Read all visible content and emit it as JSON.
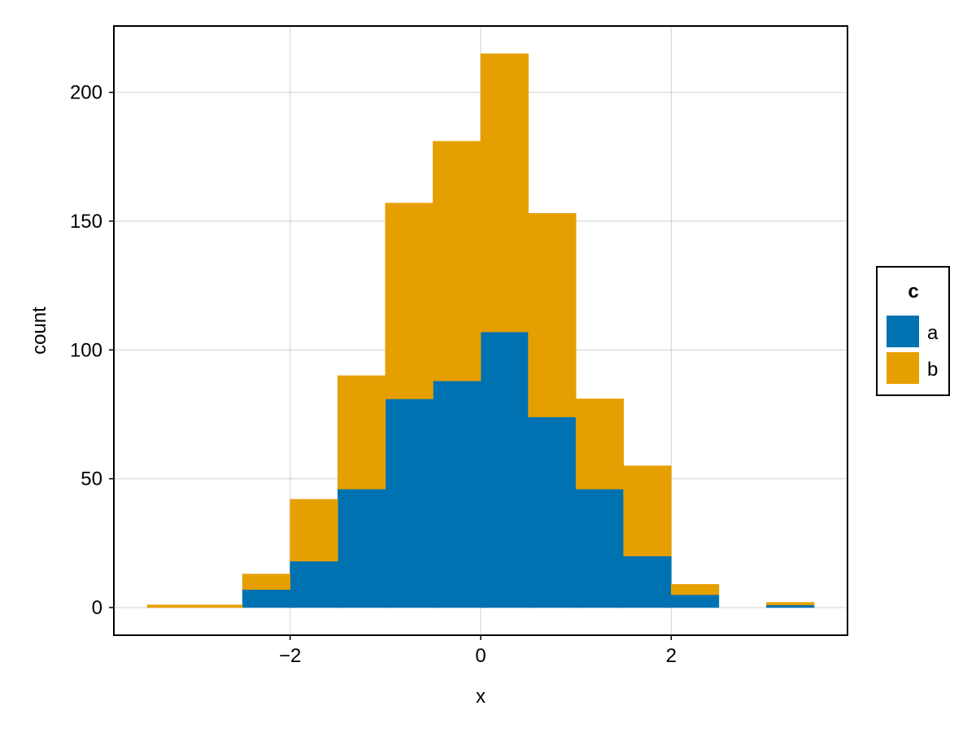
{
  "chart_data": {
    "type": "bar",
    "stacked": true,
    "xlabel": "x",
    "ylabel": "count",
    "xlim": [
      -3.85,
      3.85
    ],
    "ylim": [
      -10.75,
      225.75
    ],
    "x_ticks": [
      -2,
      0,
      2
    ],
    "x_tick_labels": [
      "−2",
      "0",
      "2"
    ],
    "y_ticks": [
      0,
      50,
      100,
      150,
      200
    ],
    "y_tick_labels": [
      "0",
      "50",
      "100",
      "150",
      "200"
    ],
    "grid": true,
    "legend": {
      "title": "c",
      "placement": "right",
      "entries": [
        "a",
        "b"
      ]
    },
    "bin_edges": [
      -3.5,
      -3.0,
      -2.5,
      -2.0,
      -1.5,
      -1.0,
      -0.5,
      0.0,
      0.5,
      1.0,
      1.5,
      2.0,
      2.5,
      3.0,
      3.5
    ],
    "series": [
      {
        "name": "a",
        "color": "#0072b2",
        "values": [
          0,
          0,
          7,
          18,
          46,
          81,
          88,
          107,
          74,
          46,
          20,
          5,
          0,
          1
        ]
      },
      {
        "name": "b",
        "color": "#e69f00",
        "values": [
          1,
          1,
          6,
          24,
          44,
          76,
          93,
          108,
          79,
          35,
          35,
          4,
          0,
          1
        ]
      }
    ]
  }
}
